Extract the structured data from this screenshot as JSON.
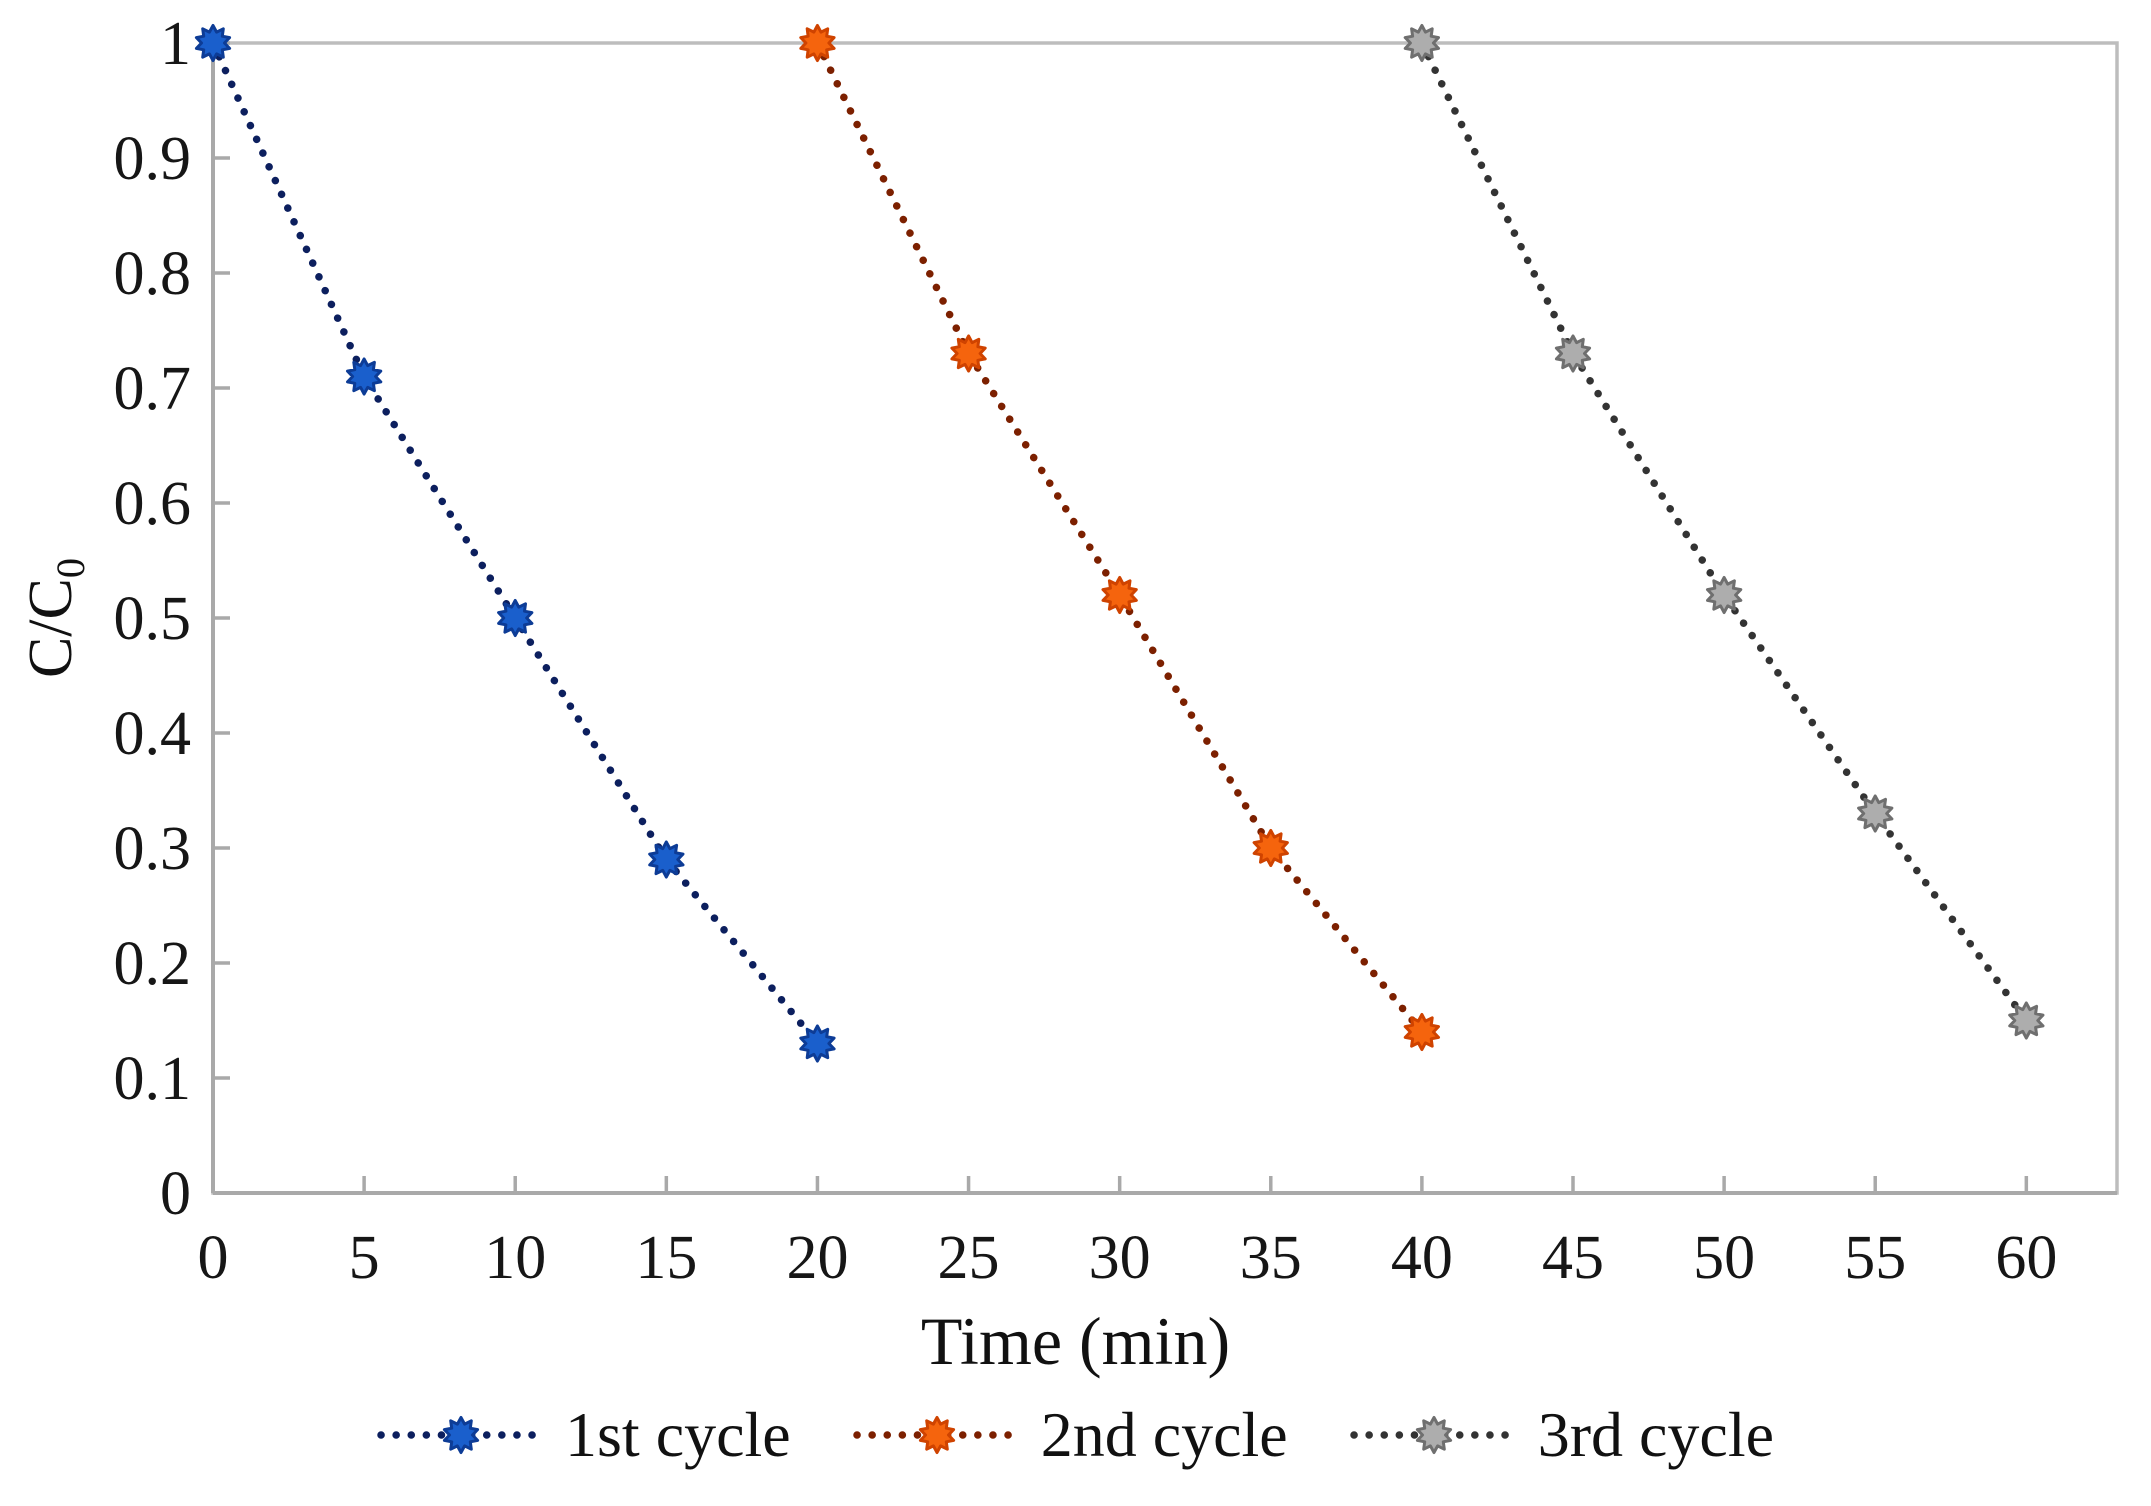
{
  "figure": {
    "background": "#ffffff",
    "axis_color": "#a9a9a9",
    "frame_color": "#bdbdbd",
    "text_color": "#161616"
  },
  "chart_data": {
    "type": "scatter",
    "title": "",
    "xlabel": "Time (min)",
    "ylabel_main": "C/C",
    "ylabel_sub": "0",
    "xlim": [
      0,
      63
    ],
    "ylim": [
      0,
      1
    ],
    "xticks": [
      0,
      5,
      10,
      15,
      20,
      25,
      30,
      35,
      40,
      45,
      50,
      55,
      60
    ],
    "yticks": [
      0,
      0.1,
      0.2,
      0.3,
      0.4,
      0.5,
      0.6,
      0.7,
      0.8,
      0.9,
      1
    ],
    "grid": false,
    "legend_position": "bottom",
    "line_style": "dotted",
    "marker_style": "10-point-star",
    "series": [
      {
        "name": "1st cycle",
        "marker_fill": "#1a5fcc",
        "marker_edge": "#0d3c96",
        "dot_color": "#0c1f5e",
        "x": [
          0,
          5,
          10,
          15,
          20
        ],
        "y": [
          1,
          0.71,
          0.5,
          0.29,
          0.13
        ]
      },
      {
        "name": "2nd cycle",
        "marker_fill": "#f5640d",
        "marker_edge": "#cf4300",
        "dot_color": "#7c2000",
        "x": [
          20,
          25,
          30,
          35,
          40
        ],
        "y": [
          1,
          0.73,
          0.52,
          0.3,
          0.14
        ]
      },
      {
        "name": "3rd cycle",
        "marker_fill": "#adadad",
        "marker_edge": "#6f6f6f",
        "dot_color": "#333333",
        "x": [
          40,
          45,
          50,
          55,
          60
        ],
        "y": [
          1,
          0.73,
          0.52,
          0.33,
          0.15
        ]
      }
    ]
  }
}
